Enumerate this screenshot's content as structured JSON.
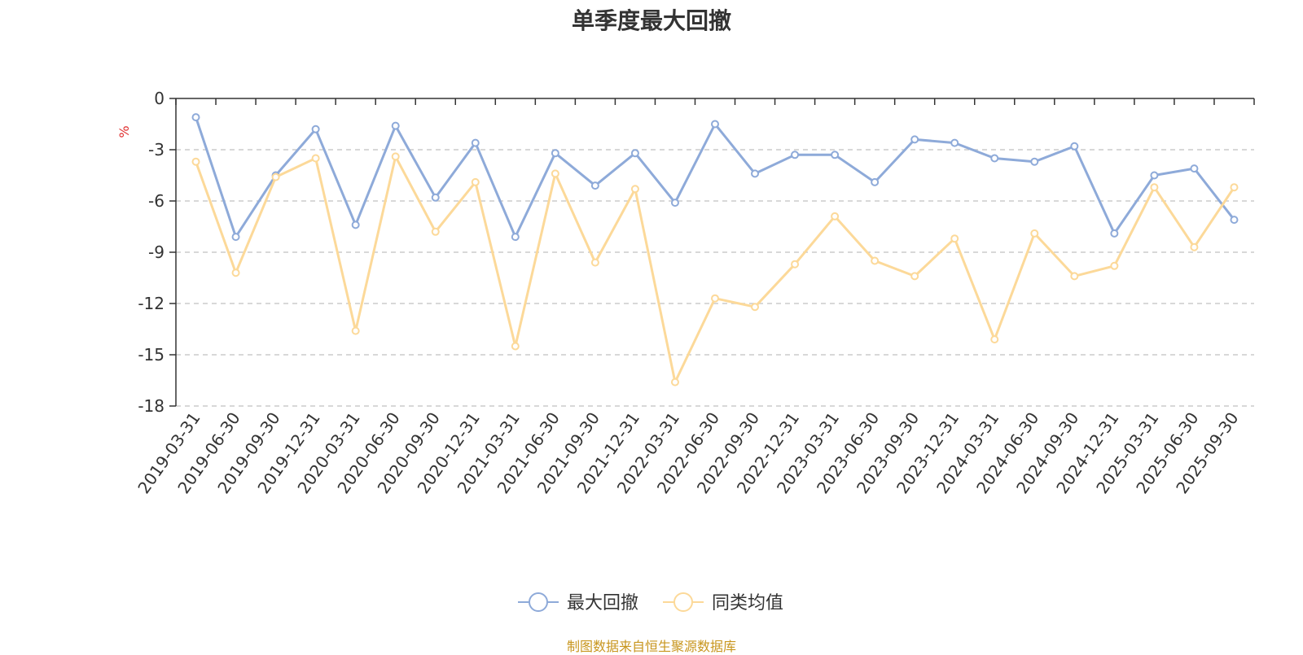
{
  "chart_data": {
    "type": "line",
    "title": "单季度最大回撤",
    "ylabel": "%",
    "xlabel": "",
    "ylim": [
      -18,
      0
    ],
    "yticks": [
      0,
      -3,
      -6,
      -9,
      -12,
      -15,
      -18
    ],
    "ytick_labels": [
      "0",
      "-3",
      "-6",
      "-9",
      "-12",
      "-15",
      "-18"
    ],
    "grid": true,
    "legend_position": "bottom-center",
    "categories": [
      "2019-03-31",
      "2019-06-30",
      "2019-09-30",
      "2019-12-31",
      "2020-03-31",
      "2020-06-30",
      "2020-09-30",
      "2020-12-31",
      "2021-03-31",
      "2021-06-30",
      "2021-09-30",
      "2021-12-31",
      "2022-03-31",
      "2022-06-30",
      "2022-09-30",
      "2022-12-31",
      "2023-03-31",
      "2023-06-30",
      "2023-09-30",
      "2023-12-31",
      "2024-03-31",
      "2024-06-30",
      "2024-09-30",
      "2024-12-31",
      "2025-03-31",
      "2025-06-30",
      "2025-09-30"
    ],
    "series": [
      {
        "name": "最大回撤",
        "color": "#8eaad9",
        "values": [
          -1.1,
          -8.1,
          -4.5,
          -1.8,
          -7.4,
          -1.6,
          -5.8,
          -2.6,
          -8.1,
          -3.2,
          -5.1,
          -3.2,
          -6.1,
          -1.5,
          -4.4,
          -3.3,
          -3.3,
          -4.9,
          -2.4,
          -2.6,
          -3.5,
          -3.7,
          -2.8,
          -7.9,
          -4.5,
          -4.1,
          -7.1
        ]
      },
      {
        "name": "同类均值",
        "color": "#fcd999",
        "values": [
          -3.7,
          -10.2,
          -4.6,
          -3.5,
          -13.6,
          -3.4,
          -7.8,
          -4.9,
          -14.5,
          -4.4,
          -9.6,
          -5.3,
          -16.6,
          -11.7,
          -12.2,
          -9.7,
          -6.9,
          -9.5,
          -10.4,
          -8.2,
          -14.1,
          -7.9,
          -10.4,
          -9.8,
          -5.2,
          -8.7,
          -5.2
        ]
      }
    ]
  },
  "source_note": "制图数据来自恒生聚源数据库"
}
